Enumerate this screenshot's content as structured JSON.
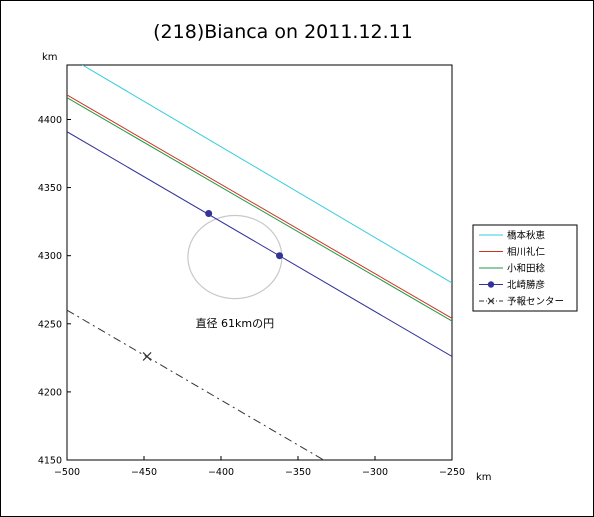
{
  "chart_data": {
    "type": "line",
    "title": "(218)Bianca on 2011.12.11",
    "x_unit": "km",
    "y_unit": "km",
    "xlim": [
      -500,
      -250
    ],
    "ylim": [
      4150,
      4440
    ],
    "x_ticks": [
      -500,
      -450,
      -400,
      -350,
      -300,
      -250
    ],
    "y_ticks": [
      4150,
      4200,
      4250,
      4300,
      4350,
      4400
    ],
    "series": [
      {
        "name": "橋本秋恵",
        "color": "#33ccdd",
        "style": "solid",
        "marker": "none",
        "x": [
          -490,
          -250
        ],
        "y": [
          4440,
          4280
        ]
      },
      {
        "name": "相川礼仁",
        "color": "#cc3322",
        "style": "solid",
        "marker": "none",
        "x": [
          -500,
          -250
        ],
        "y": [
          4418,
          4254
        ]
      },
      {
        "name": "小和田稔",
        "color": "#229944",
        "style": "solid",
        "marker": "none",
        "x": [
          -500,
          -250
        ],
        "y": [
          4416,
          4252
        ]
      },
      {
        "name": "北崎勝彦",
        "color": "#333399",
        "style": "solid",
        "marker": "dot",
        "x": [
          -500,
          -250
        ],
        "y": [
          4391,
          4226
        ],
        "points_x": [
          -408,
          -362
        ],
        "points_y": [
          4331,
          4300
        ]
      },
      {
        "name": "予報センター",
        "color": "#333333",
        "style": "dashdot",
        "marker": "x",
        "x": [
          -500,
          -250
        ],
        "y": [
          4260,
          4095
        ],
        "points_x": [
          -448
        ],
        "points_y": [
          4226
        ]
      }
    ],
    "circle": {
      "label": "直径 61kmの円",
      "center_x": -391,
      "center_y": 4299,
      "radius_km": 30.5,
      "color": "#c8c8c8"
    },
    "grid": false,
    "legend_position": "right"
  }
}
